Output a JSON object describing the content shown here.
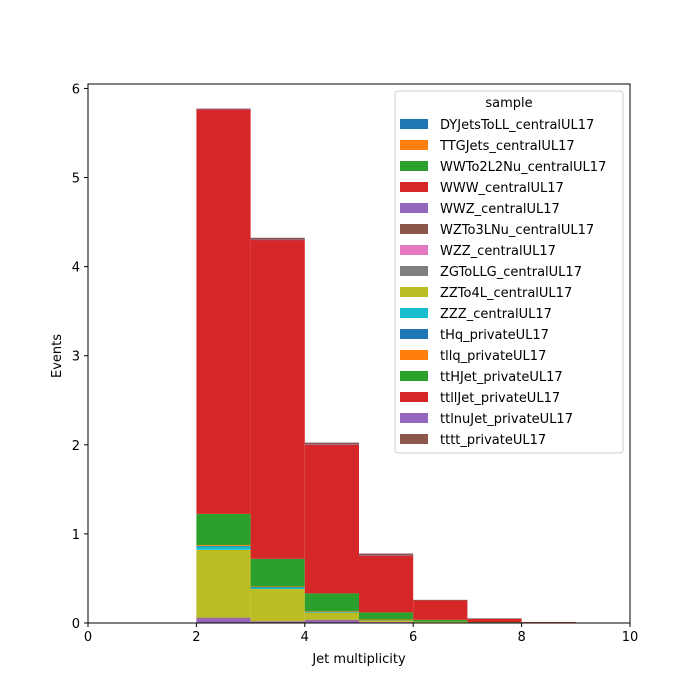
{
  "chart_data": {
    "type": "bar",
    "stacked": true,
    "histogram": true,
    "xlabel": "Jet multiplicity",
    "ylabel": "Events",
    "xlim": [
      0,
      10
    ],
    "ylim": [
      0,
      6.05
    ],
    "xticks": [
      0,
      2,
      4,
      6,
      8,
      10
    ],
    "yticks": [
      0,
      1,
      2,
      3,
      4,
      5,
      6
    ],
    "bin_edges": [
      0,
      1,
      2,
      3,
      4,
      5,
      6,
      7,
      8,
      9,
      10
    ],
    "grid": false,
    "legend": {
      "title": "sample",
      "position": "top-right"
    },
    "series": [
      {
        "name": "DYJetsToLL_centralUL17",
        "color": "#1f77b4",
        "values": [
          0,
          0,
          0,
          0,
          0,
          0,
          0,
          0,
          0,
          0
        ]
      },
      {
        "name": "TTGJets_centralUL17",
        "color": "#ff7f0e",
        "values": [
          0,
          0,
          0,
          0,
          0,
          0,
          0,
          0,
          0,
          0
        ]
      },
      {
        "name": "WWTo2L2Nu_centralUL17",
        "color": "#2ca02c",
        "values": [
          0,
          0,
          0,
          0,
          0,
          0,
          0,
          0,
          0,
          0
        ]
      },
      {
        "name": "WWW_centralUL17",
        "color": "#d62728",
        "values": [
          0,
          0,
          0.001,
          0.001,
          0,
          0,
          0,
          0,
          0,
          0
        ]
      },
      {
        "name": "WWZ_centralUL17",
        "color": "#9467bd",
        "values": [
          0,
          0,
          0.05,
          0.01,
          0.03,
          0.01,
          0.005,
          0,
          0,
          0
        ]
      },
      {
        "name": "WZTo3LNu_centralUL17",
        "color": "#8c564b",
        "values": [
          0,
          0,
          0.004,
          0.004,
          0.003,
          0.001,
          0,
          0,
          0,
          0
        ]
      },
      {
        "name": "WZZ_centralUL17",
        "color": "#e377c2",
        "values": [
          0,
          0,
          0.003,
          0.003,
          0.002,
          0.001,
          0,
          0,
          0,
          0
        ]
      },
      {
        "name": "ZGToLLG_centralUL17",
        "color": "#7f7f7f",
        "values": [
          0,
          0,
          0.003,
          0.003,
          0.002,
          0,
          0,
          0,
          0,
          0
        ]
      },
      {
        "name": "ZZTo4L_centralUL17",
        "color": "#bcbd22",
        "values": [
          0,
          0,
          0.76,
          0.36,
          0.08,
          0.02,
          0.01,
          0,
          0,
          0
        ]
      },
      {
        "name": "ZZZ_centralUL17",
        "color": "#17becf",
        "values": [
          0,
          0,
          0.04,
          0.02,
          0.01,
          0.005,
          0,
          0,
          0,
          0
        ]
      },
      {
        "name": "tHq_privateUL17",
        "color": "#1f77b4",
        "values": [
          0,
          0,
          0.004,
          0.003,
          0.002,
          0.001,
          0,
          0,
          0,
          0
        ]
      },
      {
        "name": "tllq_privateUL17",
        "color": "#ff7f0e",
        "values": [
          0,
          0,
          0.01,
          0.006,
          0.003,
          0.001,
          0,
          0,
          0,
          0
        ]
      },
      {
        "name": "ttHJet_privateUL17",
        "color": "#2ca02c",
        "values": [
          0,
          0,
          0.35,
          0.31,
          0.2,
          0.08,
          0.02,
          0.01,
          0,
          0
        ]
      },
      {
        "name": "ttllJet_privateUL17",
        "color": "#d62728",
        "values": [
          0,
          0,
          4.54,
          3.58,
          1.67,
          0.64,
          0.22,
          0.04,
          0.01,
          0
        ]
      },
      {
        "name": "ttlnuJet_privateUL17",
        "color": "#9467bd",
        "values": [
          0,
          0,
          0.004,
          0.004,
          0.003,
          0.001,
          0,
          0,
          0,
          0
        ]
      },
      {
        "name": "tttt_privateUL17",
        "color": "#8c564b",
        "values": [
          0,
          0,
          0.005,
          0.02,
          0.02,
          0.02,
          0.005,
          0.002,
          0,
          0
        ]
      }
    ]
  }
}
